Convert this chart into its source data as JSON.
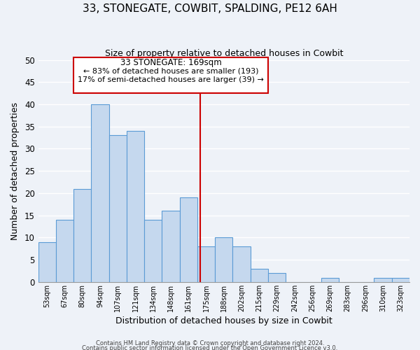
{
  "title": "33, STONEGATE, COWBIT, SPALDING, PE12 6AH",
  "subtitle": "Size of property relative to detached houses in Cowbit",
  "xlabel": "Distribution of detached houses by size in Cowbit",
  "ylabel": "Number of detached properties",
  "bar_labels": [
    "53sqm",
    "67sqm",
    "80sqm",
    "94sqm",
    "107sqm",
    "121sqm",
    "134sqm",
    "148sqm",
    "161sqm",
    "175sqm",
    "188sqm",
    "202sqm",
    "215sqm",
    "229sqm",
    "242sqm",
    "256sqm",
    "269sqm",
    "283sqm",
    "296sqm",
    "310sqm",
    "323sqm"
  ],
  "bar_values": [
    9,
    14,
    21,
    40,
    33,
    34,
    14,
    16,
    19,
    8,
    10,
    8,
    3,
    2,
    0,
    0,
    1,
    0,
    0,
    1,
    1
  ],
  "bar_color": "#c5d8ee",
  "bar_edge_color": "#5b9bd5",
  "vline_x": 8.65,
  "vline_color": "#cc0000",
  "ylim": [
    0,
    50
  ],
  "yticks": [
    0,
    5,
    10,
    15,
    20,
    25,
    30,
    35,
    40,
    45,
    50
  ],
  "annotation_title": "33 STONEGATE: 169sqm",
  "annotation_line1": "← 83% of detached houses are smaller (193)",
  "annotation_line2": "17% of semi-detached houses are larger (39) →",
  "annotation_box_color": "#cc0000",
  "footnote1": "Contains HM Land Registry data © Crown copyright and database right 2024.",
  "footnote2": "Contains public sector information licensed under the Open Government Licence v3.0.",
  "background_color": "#eef2f8",
  "grid_color": "#ffffff"
}
